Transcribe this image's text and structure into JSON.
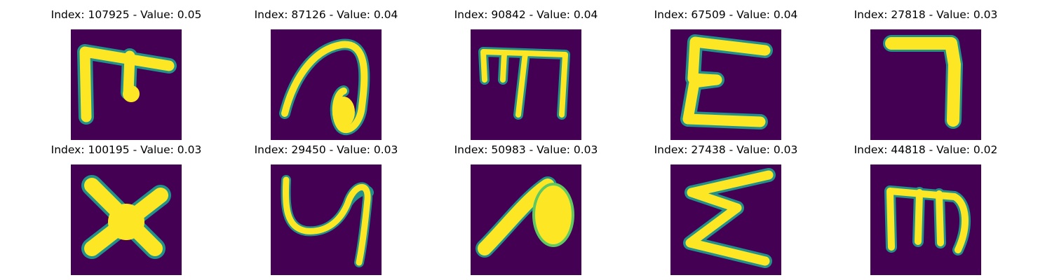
{
  "colors": {
    "background": "#440154",
    "stroke_halo": "#21918c",
    "stroke_mid": "#5ec962",
    "stroke_core": "#fde725"
  },
  "panels": [
    {
      "index": "107925",
      "value": "0.05",
      "title": "Index: 107925 - Value: 0.05",
      "glyph_name": "glyph-pi-like"
    },
    {
      "index": "87126",
      "value": "0.04",
      "title": "Index: 87126 - Value: 0.04",
      "glyph_name": "glyph-loop-curl"
    },
    {
      "index": "90842",
      "value": "0.04",
      "title": "Index: 90842 - Value: 0.04",
      "glyph_name": "glyph-m-like"
    },
    {
      "index": "67509",
      "value": "0.04",
      "title": "Index: 67509 - Value: 0.04",
      "glyph_name": "glyph-epsilon-like"
    },
    {
      "index": "27818",
      "value": "0.03",
      "title": "Index: 27818 - Value: 0.03",
      "glyph_name": "glyph-seven-like"
    },
    {
      "index": "100195",
      "value": "0.03",
      "title": "Index: 100195 - Value: 0.03",
      "glyph_name": "glyph-x-like"
    },
    {
      "index": "29450",
      "value": "0.03",
      "title": "Index: 29450 - Value: 0.03",
      "glyph_name": "glyph-y-like"
    },
    {
      "index": "50983",
      "value": "0.03",
      "title": "Index: 50983 - Value: 0.03",
      "glyph_name": "glyph-blob-curve"
    },
    {
      "index": "27438",
      "value": "0.03",
      "title": "Index: 27438 - Value: 0.03",
      "glyph_name": "glyph-sigma-like"
    },
    {
      "index": "44818",
      "value": "0.02",
      "title": "Index: 44818 - Value: 0.02",
      "glyph_name": "glyph-m-rounded"
    }
  ]
}
